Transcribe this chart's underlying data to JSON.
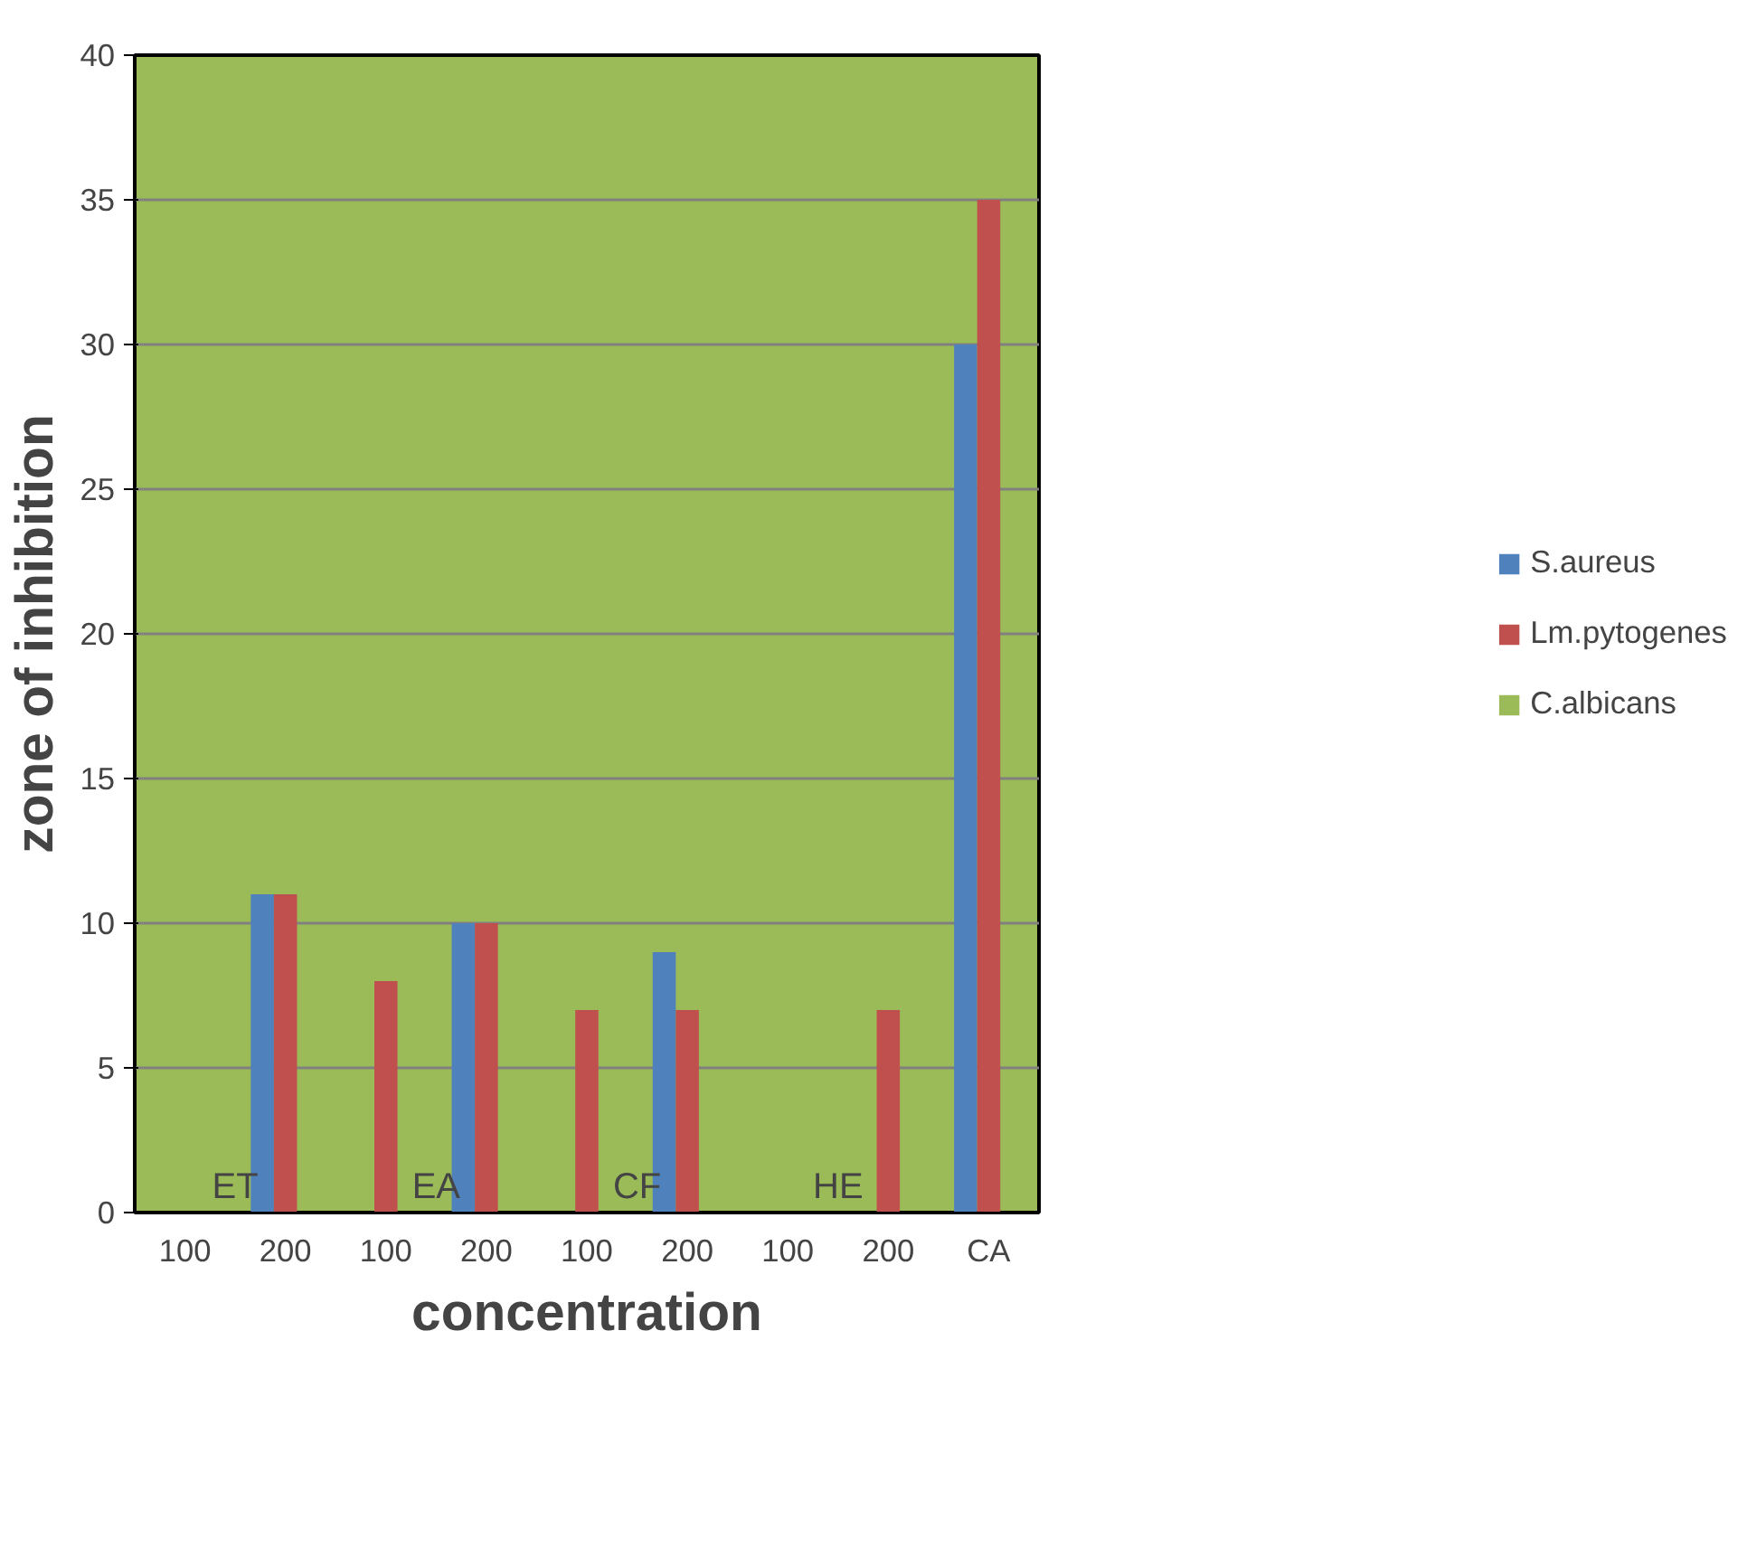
{
  "chart_data": {
    "type": "bar",
    "xlabel": "concentration",
    "ylabel": "zone of inhibition",
    "categories": [
      "100",
      "200",
      "100",
      "200",
      "100",
      "200",
      "100",
      "200",
      "CA"
    ],
    "series": [
      {
        "name": "S.aureus",
        "color": "#4f81bd",
        "values": [
          0,
          11,
          0,
          10,
          0,
          9,
          0,
          0,
          30
        ]
      },
      {
        "name": "Lm.pytogenes",
        "color": "#c0504d",
        "values": [
          0,
          11,
          8,
          10,
          7,
          7,
          0,
          7,
          35
        ]
      },
      {
        "name": "C.albicans",
        "color": "#9bbb59",
        "values": [
          null,
          null,
          null,
          null,
          null,
          null,
          null,
          null,
          null
        ]
      }
    ],
    "annotations": [
      "ET",
      "EA",
      "CF",
      "HE"
    ],
    "ylim": [
      0,
      40
    ],
    "yticks": [
      0,
      5,
      10,
      15,
      20,
      25,
      30,
      35,
      40
    ],
    "grid": "y",
    "legend": "right"
  }
}
